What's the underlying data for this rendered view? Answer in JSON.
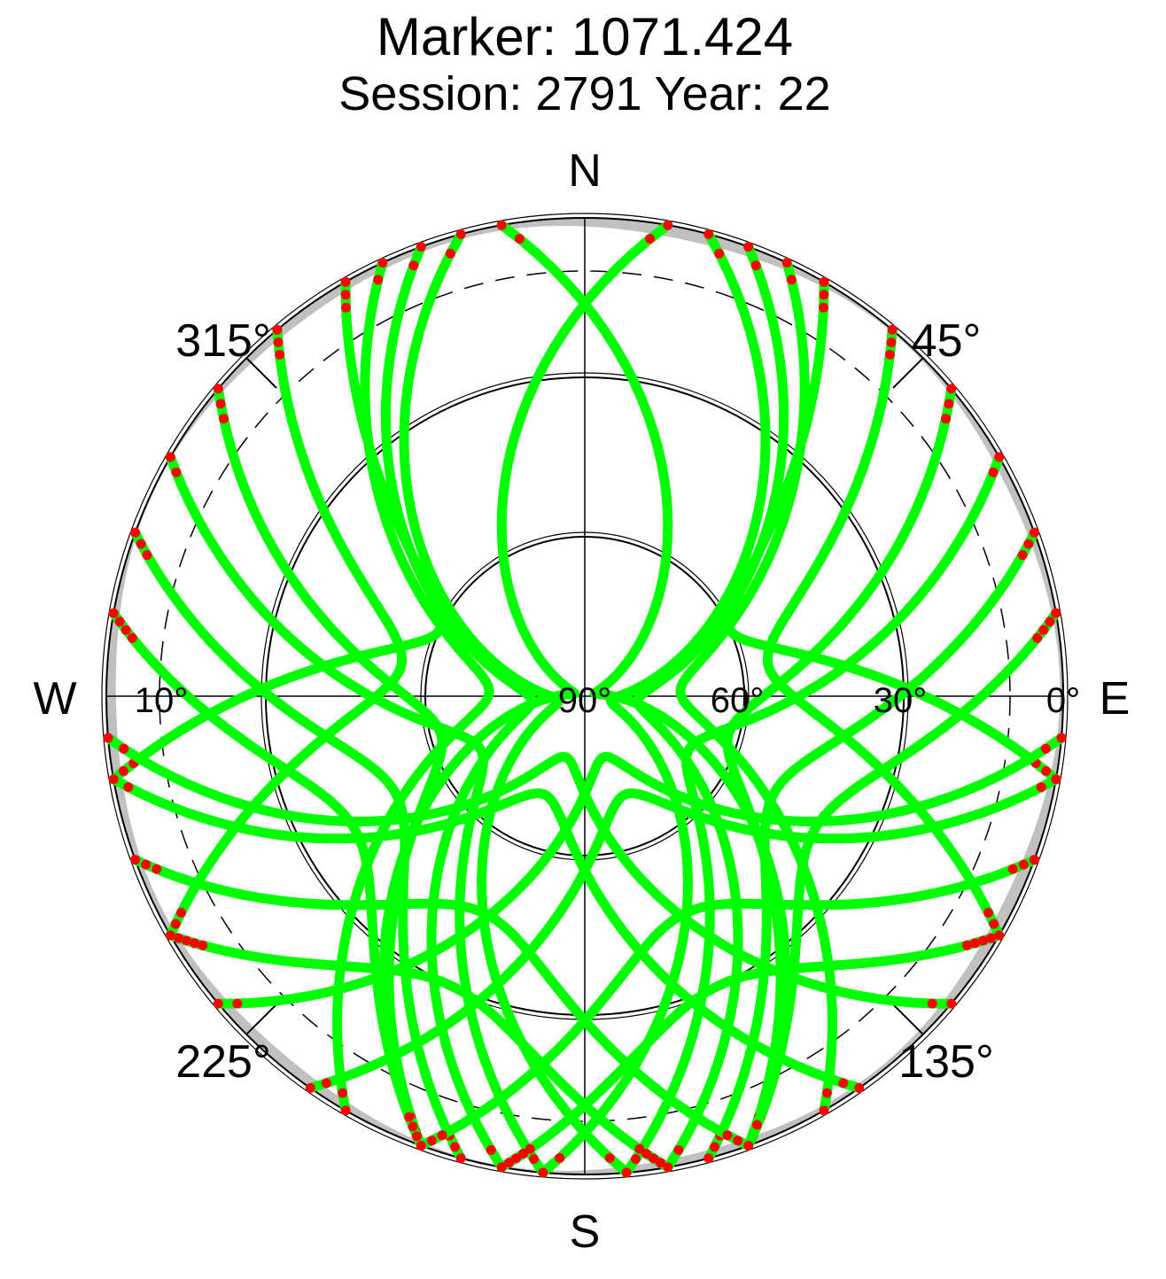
{
  "title": "Marker: 1071.424",
  "subtitle": "Session: 2791 Year: 22",
  "colors": {
    "track": "#00ff00",
    "low_elevation": "#ff0000",
    "horizon_mask": "#c0c0c0",
    "grid": "#000000"
  },
  "chart_data": {
    "type": "scatter",
    "projection": "polar-skyplot",
    "title": "Marker: 1071.424",
    "subtitle": "Session: 2791 Year: 22",
    "cardinal_labels": [
      "N",
      "E",
      "S",
      "W"
    ],
    "azimuth_tick_labels": [
      "45°",
      "135°",
      "225°",
      "315°"
    ],
    "elevation_tick_labels": [
      "0°",
      "30°",
      "60°",
      "90°",
      "10°"
    ],
    "elevation_rings": [
      0,
      30,
      60
    ],
    "dashed_ring_elevation": 10,
    "cutoff_elevation": 10,
    "tracks": [
      {
        "az_start": 30,
        "az_end": 100,
        "el_start": 0,
        "el_max": 60
      },
      {
        "az_start": 25,
        "az_end": 150,
        "el_start": 0,
        "el_max": 72
      },
      {
        "az_start": 20,
        "az_end": 170,
        "el_start": 0,
        "el_max": 80
      },
      {
        "az_start": 15,
        "az_end": 185,
        "el_start": 0,
        "el_max": 85
      },
      {
        "az_start": 10,
        "az_end": 200,
        "el_start": 0,
        "el_max": 88
      },
      {
        "az_start": 40,
        "az_end": 120,
        "el_start": 0,
        "el_max": 55
      },
      {
        "az_start": 50,
        "az_end": 160,
        "el_start": 0,
        "el_max": 62
      },
      {
        "az_start": 60,
        "az_end": 175,
        "el_start": 0,
        "el_max": 68
      },
      {
        "az_start": 70,
        "az_end": 165,
        "el_start": 0,
        "el_max": 50
      },
      {
        "az_start": 80,
        "az_end": 160,
        "el_start": 0,
        "el_max": 40
      },
      {
        "az_start": 330,
        "az_end": 260,
        "el_start": 0,
        "el_max": 60
      },
      {
        "az_start": 335,
        "az_end": 210,
        "el_start": 0,
        "el_max": 72
      },
      {
        "az_start": 340,
        "az_end": 190,
        "el_start": 0,
        "el_max": 80
      },
      {
        "az_start": 345,
        "az_end": 175,
        "el_start": 0,
        "el_max": 85
      },
      {
        "az_start": 350,
        "az_end": 160,
        "el_start": 0,
        "el_max": 88
      },
      {
        "az_start": 320,
        "az_end": 240,
        "el_start": 0,
        "el_max": 55
      },
      {
        "az_start": 310,
        "az_end": 200,
        "el_start": 0,
        "el_max": 62
      },
      {
        "az_start": 300,
        "az_end": 185,
        "el_start": 0,
        "el_max": 68
      },
      {
        "az_start": 290,
        "az_end": 195,
        "el_start": 0,
        "el_max": 50
      },
      {
        "az_start": 280,
        "az_end": 200,
        "el_start": 0,
        "el_max": 40
      },
      {
        "az_start": 100,
        "az_end": 215,
        "el_start": 0,
        "el_max": 70
      },
      {
        "az_start": 95,
        "az_end": 230,
        "el_start": 0,
        "el_max": 78
      },
      {
        "az_start": 260,
        "az_end": 145,
        "el_start": 0,
        "el_max": 70
      },
      {
        "az_start": 265,
        "az_end": 130,
        "el_start": 0,
        "el_max": 78
      },
      {
        "az_start": 110,
        "az_end": 200,
        "el_start": 0,
        "el_max": 45
      },
      {
        "az_start": 250,
        "az_end": 160,
        "el_start": 0,
        "el_max": 45
      },
      {
        "az_start": 120,
        "az_end": 190,
        "el_start": 0,
        "el_max": 30
      },
      {
        "az_start": 240,
        "az_end": 170,
        "el_start": 0,
        "el_max": 30
      }
    ]
  }
}
